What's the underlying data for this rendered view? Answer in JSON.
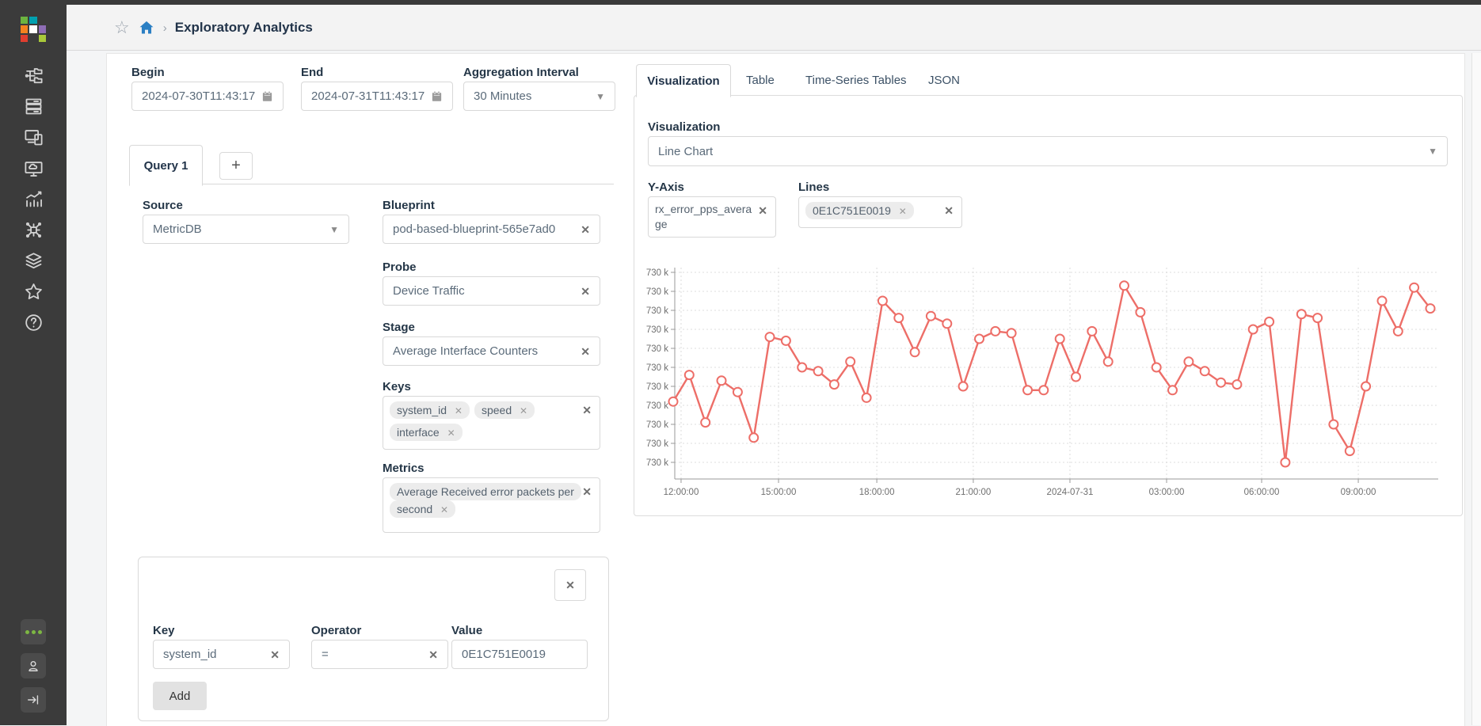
{
  "navbar": {
    "breadcrumb": "Exploratory Analytics"
  },
  "sidebar": {
    "logo_colors": [
      "#6cb33f",
      "#00a0af",
      "",
      "#f5821f",
      "#ffffff",
      "#8e6db5",
      "#e03e2f",
      "",
      "#a9c93a"
    ],
    "accent_green": "#7db743"
  },
  "query_panel": {
    "begin_label": "Begin",
    "begin_value": "2024-07-30T11:43:17",
    "end_label": "End",
    "end_value": "2024-07-31T11:43:17",
    "agg_label": "Aggregation Interval",
    "agg_value": "30 Minutes",
    "tab_label": "Query 1",
    "add_tab_label": "+",
    "source_label": "Source",
    "source_value": "MetricDB",
    "blueprint_label": "Blueprint",
    "blueprint_value": "pod-based-blueprint-565e7ad0",
    "probe_label": "Probe",
    "probe_value": "Device Traffic",
    "stage_label": "Stage",
    "stage_value": "Average Interface Counters",
    "keys_label": "Keys",
    "keys": [
      "system_id",
      "speed",
      "interface"
    ],
    "metrics_label": "Metrics",
    "metrics": [
      "Average Received error packets per second"
    ],
    "filter": {
      "key_label": "Key",
      "key_value": "system_id",
      "operator_label": "Operator",
      "operator_value": "=",
      "value_label": "Value",
      "value_value": "0E1C751E0019",
      "add_button": "Add"
    }
  },
  "viz_panel": {
    "tabs": [
      "Visualization",
      "Table",
      "Time-Series Tables",
      "JSON"
    ],
    "active_tab": "Visualization",
    "visualization_label": "Visualization",
    "visualization_value": "Line Chart",
    "y_axis_label": "Y-Axis",
    "y_axis_value": "rx_error_pps_average",
    "lines_label": "Lines",
    "lines": [
      "0E1C751E0019"
    ]
  },
  "chart_data": {
    "type": "line",
    "title": "",
    "xlabel": "",
    "ylabel": "rx_error_pps_average",
    "grid": "dashed",
    "marker": "open-circle",
    "line_color": "#ed6e68",
    "axis_color": "#999999",
    "grid_color": "#dcdcdc",
    "tick_label_color": "#6f6f6f",
    "ylim": [
      729500,
      730500
    ],
    "y_tick_labels": [
      "730 k",
      "730 k",
      "730 k",
      "730 k",
      "730 k",
      "730 k",
      "730 k",
      "730 k",
      "730 k",
      "730 k",
      "730 k"
    ],
    "x_tick_labels": [
      "12:00:00",
      "15:00:00",
      "18:00:00",
      "21:00:00",
      "2024-07-31",
      "03:00:00",
      "06:00:00",
      "09:00:00"
    ],
    "x_tick_index": [
      0.49,
      6.54,
      12.64,
      18.63,
      24.63,
      30.63,
      36.53,
      42.53
    ],
    "series": [
      {
        "name": "0E1C751E0019",
        "values": [
          729820,
          729960,
          729710,
          729930,
          729870,
          729630,
          730160,
          730140,
          730000,
          729980,
          729910,
          730030,
          729840,
          730350,
          730260,
          730080,
          730270,
          730230,
          729900,
          730150,
          730190,
          730180,
          729880,
          729880,
          730150,
          729950,
          730190,
          730030,
          730430,
          730290,
          730000,
          729880,
          730030,
          729980,
          729920,
          729910,
          730200,
          730240,
          729500,
          730280,
          730260,
          729700,
          729560,
          729900,
          730350,
          730190,
          730420,
          730310
        ]
      }
    ]
  }
}
